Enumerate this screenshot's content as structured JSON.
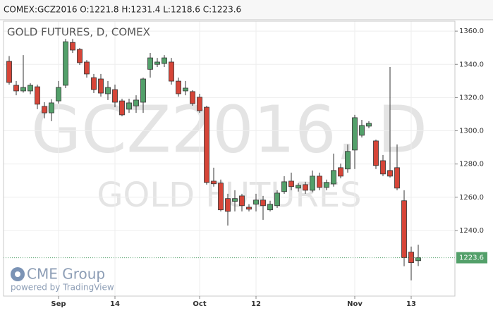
{
  "chart_data": {
    "type": "candlestick",
    "header": "COMEX:GCZ2016 O:1221.8 H:1231.4 L:1218.6 C:1223.6",
    "title": "GOLD FUTURES, D, COMEX",
    "watermark": "GCZ2016, D",
    "watermark_subtitle": "GOLD FUTURES",
    "logo": "CME Group",
    "credit": "powered by TradingView",
    "categories": [
      null,
      null,
      null,
      null,
      null,
      null,
      null,
      "Sep",
      null,
      null,
      null,
      null,
      null,
      null,
      null,
      "14",
      null,
      null,
      null,
      null,
      null,
      null,
      null,
      null,
      null,
      null,
      null,
      "Oct",
      null,
      null,
      null,
      null,
      null,
      null,
      null,
      "12",
      null,
      null,
      null,
      null,
      null,
      null,
      null,
      null,
      null,
      null,
      null,
      null,
      null,
      "Nov",
      null,
      null,
      null,
      null,
      null,
      null,
      null,
      "13",
      null
    ],
    "open": [
      1341.8,
      1327.4,
      1324,
      1324,
      1326.5,
      1314.7,
      1310.8,
      1318,
      1327.4,
      1353.2,
      1349,
      1341.4,
      1332,
      1331.2,
      1322.3,
      1324.8,
      1318,
      1313,
      1315,
      1317.2,
      1337,
      1340,
      1340.5,
      1341.4,
      1329.9,
      1324,
      1323.6,
      1320.2,
      1314.2,
      1269.7,
      1268.5,
      1259.2,
      1257.5,
      1260.8,
      1254,
      1255.8,
      1258.3,
      1252.4,
      1254.9,
      1263.4,
      1269.7,
      1265.5,
      1267.6,
      1264.2,
      1272.7,
      1265.9,
      1268,
      1277.8,
      1277,
      1288.4,
      1297.3,
      1302.8,
      1293.9,
      1282,
      1276.1,
      1277.8,
      1257.9,
      1227,
      1221.8
    ],
    "high": [
      1345,
      1330,
      1345.6,
      1328.6,
      1327.8,
      1317.2,
      1319,
      1330,
      1355.3,
      1355.3,
      1349.8,
      1342.6,
      1334.2,
      1334.2,
      1330,
      1327.8,
      1319.3,
      1319.3,
      1321.4,
      1332,
      1346.9,
      1343.9,
      1345.6,
      1343.9,
      1332,
      1330,
      1324.4,
      1322.3,
      1315.1,
      1277.8,
      1270.6,
      1262.1,
      1264.2,
      1262.1,
      1255.8,
      1262.1,
      1260.8,
      1257.9,
      1264.2,
      1272.7,
      1274.8,
      1268.5,
      1269.3,
      1276.1,
      1274.8,
      1270.6,
      1286.3,
      1280.3,
      1291.8,
      1309.6,
      1306.6,
      1305.8,
      1294.7,
      1285.4,
      1338.4,
      1291.8,
      1264.2,
      1230.3,
      1231.4
    ],
    "low": [
      1327.8,
      1321.4,
      1323,
      1322,
      1313,
      1307.5,
      1305.8,
      1316.4,
      1325.7,
      1346.9,
      1339.7,
      1332,
      1322.7,
      1320.6,
      1318.5,
      1314.2,
      1308.7,
      1310.8,
      1310.8,
      1310.8,
      1332,
      1338.4,
      1338.4,
      1327.8,
      1320.6,
      1321.4,
      1315.1,
      1310.8,
      1267.6,
      1266.4,
      1251.5,
      1243,
      1251.5,
      1251.5,
      1251.5,
      1251.5,
      1246.4,
      1251.5,
      1253.6,
      1262.1,
      1264.2,
      1263.4,
      1262.1,
      1263,
      1264.2,
      1264.2,
      1266.4,
      1271.4,
      1274.8,
      1277,
      1296,
      1301.5,
      1277,
      1272.7,
      1271.9,
      1264.2,
      1218.5,
      1210,
      1218.6
    ],
    "close": [
      1329.1,
      1324,
      1326.1,
      1327.4,
      1316,
      1310.8,
      1316.8,
      1326.1,
      1353.6,
      1348.6,
      1341,
      1334.2,
      1324.8,
      1322.7,
      1326.1,
      1317.2,
      1309.6,
      1316.8,
      1318.5,
      1331.2,
      1343.9,
      1341.4,
      1343.9,
      1329.9,
      1322.3,
      1325.7,
      1316.4,
      1312.1,
      1268.9,
      1268.1,
      1252.4,
      1251.5,
      1259.2,
      1254.9,
      1252.8,
      1258.3,
      1254.9,
      1255.8,
      1262.5,
      1269.3,
      1266.4,
      1267.2,
      1264.2,
      1272.7,
      1265.9,
      1268.9,
      1276.1,
      1272.7,
      1287.6,
      1307.9,
      1303.2,
      1304.5,
      1279.1,
      1274,
      1272.7,
      1265.5,
      1223.6,
      1220.6,
      1223.6
    ],
    "last_price": 1223.6,
    "up_color": "#53a06a",
    "down_color": "#d64538",
    "ylim": [
      1200.5,
      1366
    ],
    "yticks": [
      {
        "value": 1240,
        "label": "1240.0"
      },
      {
        "value": 1260,
        "label": "1260.0"
      },
      {
        "value": 1280,
        "label": "1280.0"
      },
      {
        "value": 1300,
        "label": "1300.0"
      },
      {
        "value": 1320,
        "label": "1320.0"
      },
      {
        "value": 1340,
        "label": "1340.0"
      },
      {
        "value": 1360,
        "label": "1360.0"
      }
    ],
    "grid": true
  }
}
